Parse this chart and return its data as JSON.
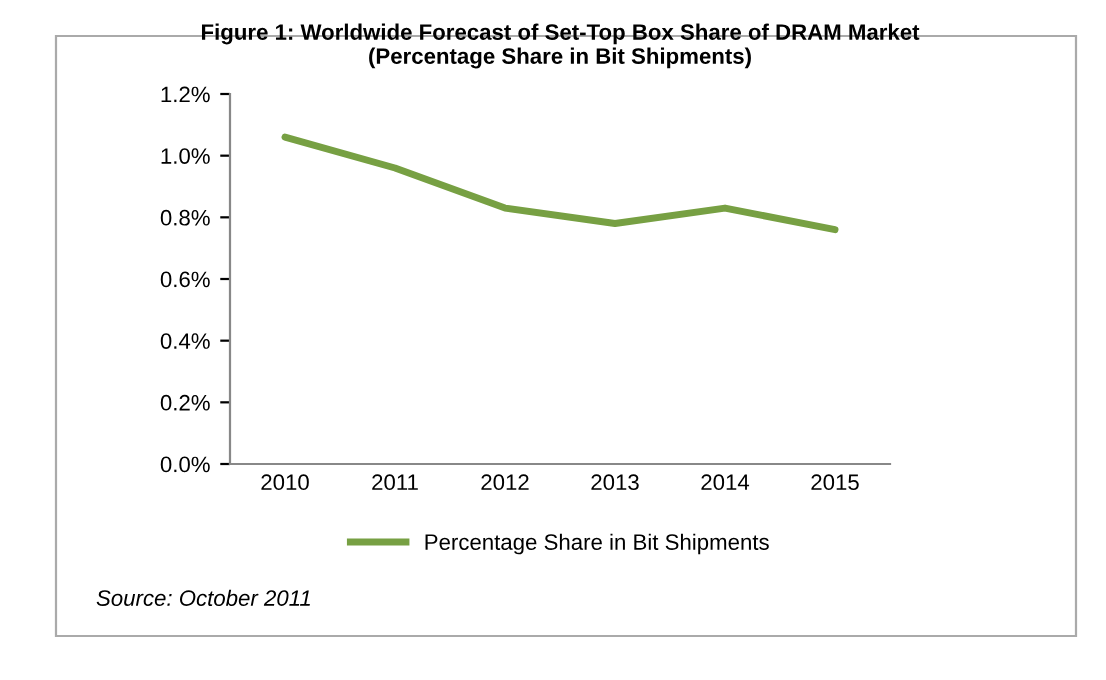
{
  "chart_data": {
    "type": "line",
    "title": "Figure 1: Worldwide Forecast of Set-Top Box Share of DRAM Market\n(Percentage Share in Bit Shipments)",
    "categories": [
      "2010",
      "2011",
      "2012",
      "2013",
      "2014",
      "2015"
    ],
    "series": [
      {
        "name": "Percentage Share in Bit Shipments",
        "color": "#77a043",
        "values": [
          1.06,
          0.96,
          0.83,
          0.78,
          0.83,
          0.76
        ]
      }
    ],
    "ylim": [
      0,
      1.2
    ],
    "yticks": [
      {
        "value": 0,
        "label": "0.0%"
      },
      {
        "value": 0.2,
        "label": "0.2%"
      },
      {
        "value": 0.4,
        "label": "0.4%"
      },
      {
        "value": 0.6,
        "label": "0.6%"
      },
      {
        "value": 0.8,
        "label": "0.8%"
      },
      {
        "value": 1.0,
        "label": "1.0%"
      },
      {
        "value": 1.2,
        "label": "1.2%"
      }
    ],
    "legend": "bottom",
    "grid": false,
    "marker": "none",
    "line_style": "solid",
    "annotations": [
      "Source: October 2011"
    ]
  }
}
